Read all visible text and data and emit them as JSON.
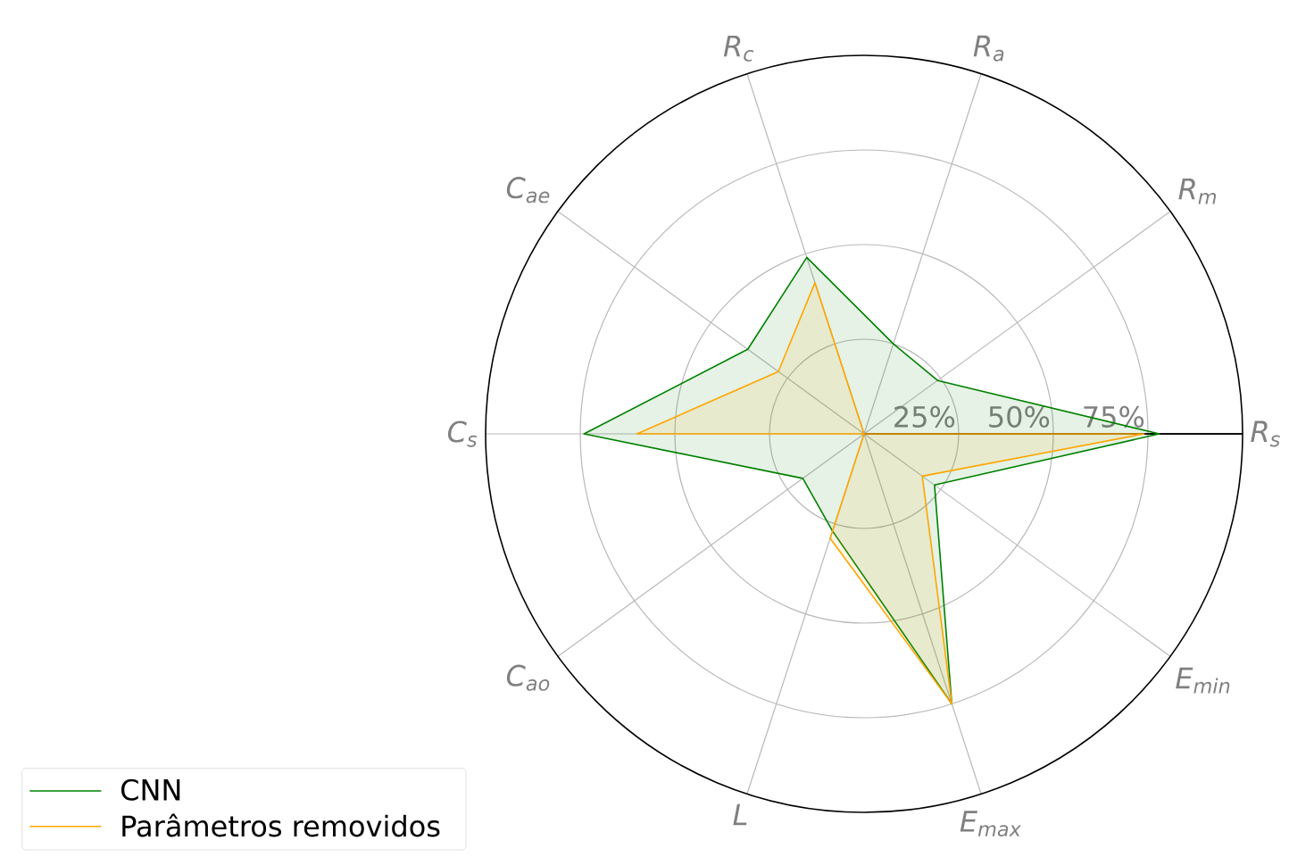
{
  "chart_data": {
    "type": "radar",
    "categories": [
      "R$_{a}$",
      "R$_{m}$",
      "R$_{s}$",
      "E$_{min}$",
      "E$_{max}$",
      "L",
      "C$_{ao}$",
      "C$_{s}$",
      "C$_{ae}$",
      "R$_{c}$"
    ],
    "series": [
      {
        "name": "CNN",
        "color": "#008000",
        "values": [
          25,
          24,
          78,
          23,
          75,
          27,
          20,
          74,
          38,
          49
        ]
      },
      {
        "name": "Parâmetros removidos",
        "color": "#ffa500",
        "values": [
          0,
          0,
          74,
          19,
          75,
          29,
          0,
          60,
          28,
          42
        ]
      }
    ],
    "ylim": [
      0,
      100
    ],
    "yticks": [
      {
        "value": 25,
        "label": "25%"
      },
      {
        "value": 50,
        "label": "50%"
      },
      {
        "value": 75,
        "label": "75%"
      }
    ],
    "grid": true,
    "legend": "bottom left",
    "marker": "none",
    "line_style": "solid"
  }
}
